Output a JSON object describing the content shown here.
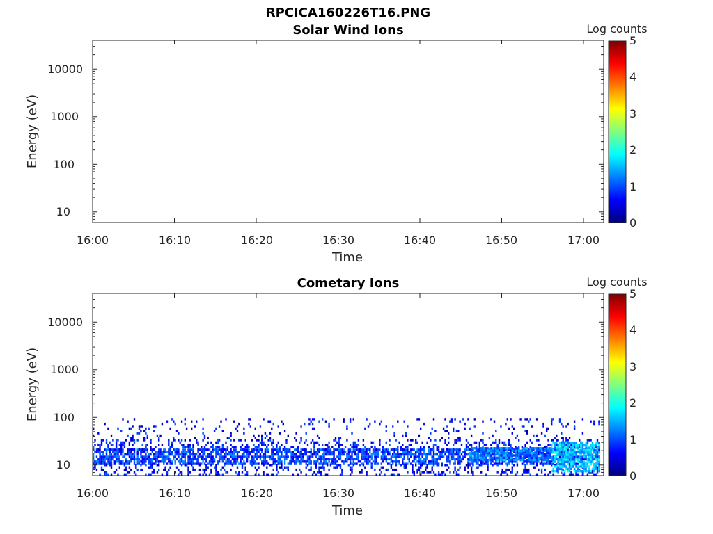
{
  "figure_title": "RPCICA160226T16.PNG",
  "colorbar": {
    "label": "Log counts",
    "ticks": [
      "0",
      "1",
      "2",
      "3",
      "4",
      "5"
    ],
    "colormap": "jet",
    "colors": [
      "#00007f",
      "#0000ff",
      "#007fff",
      "#00ffff",
      "#7fff7f",
      "#ffff00",
      "#ff7f00",
      "#ff0000",
      "#7f0000"
    ]
  },
  "panels": [
    {
      "title": "Solar Wind Ions",
      "xlabel": "Time",
      "ylabel": "Energy (eV)",
      "xticks": [
        "16:00",
        "16:10",
        "16:20",
        "16:30",
        "16:40",
        "16:50",
        "17:00"
      ],
      "yticks": [
        "10",
        "100",
        "1000",
        "10000"
      ]
    },
    {
      "title": "Cometary Ions",
      "xlabel": "Time",
      "ylabel": "Energy (eV)",
      "xticks": [
        "16:00",
        "16:10",
        "16:20",
        "16:30",
        "16:40",
        "16:50",
        "17:00"
      ],
      "yticks": [
        "10",
        "100",
        "1000",
        "10000"
      ]
    }
  ],
  "chart_data": [
    {
      "type": "heatmap",
      "title": "Solar Wind Ions",
      "xlabel": "Time",
      "ylabel": "Energy (eV)",
      "x_scale": "time",
      "y_scale": "log",
      "xlim": [
        "16:00",
        "17:02"
      ],
      "ylim": [
        6,
        40000
      ],
      "colorbar_label": "Log counts",
      "clim": [
        0,
        5
      ],
      "cells": []
    },
    {
      "type": "heatmap",
      "title": "Cometary Ions",
      "xlabel": "Time",
      "ylabel": "Energy (eV)",
      "x_scale": "time",
      "y_scale": "log",
      "xlim": [
        "16:00",
        "17:02"
      ],
      "ylim": [
        6,
        40000
      ],
      "colorbar_label": "Log counts",
      "clim": [
        0,
        5
      ],
      "bands": [
        {
          "time_start": "16:00",
          "time_end": "17:02",
          "energy_min": 10,
          "energy_max": 20,
          "log_counts": 0.9,
          "coverage": "dense"
        },
        {
          "time_start": "16:00",
          "time_end": "17:02",
          "energy_min": 20,
          "energy_max": 35,
          "log_counts": 0.7,
          "coverage": "sparse"
        },
        {
          "time_start": "16:00",
          "time_end": "17:02",
          "energy_min": 35,
          "energy_max": 90,
          "log_counts": 0.6,
          "coverage": "very sparse"
        },
        {
          "time_start": "16:00",
          "time_end": "17:02",
          "energy_min": 6,
          "energy_max": 10,
          "log_counts": 0.6,
          "coverage": "sparse"
        },
        {
          "time_start": "16:46",
          "time_end": "16:56",
          "energy_min": 12,
          "energy_max": 22,
          "log_counts": 1.2,
          "coverage": "dense"
        },
        {
          "time_start": "16:56",
          "time_end": "17:02",
          "energy_min": 7,
          "energy_max": 30,
          "log_counts": 1.6,
          "coverage": "dense"
        }
      ]
    }
  ]
}
